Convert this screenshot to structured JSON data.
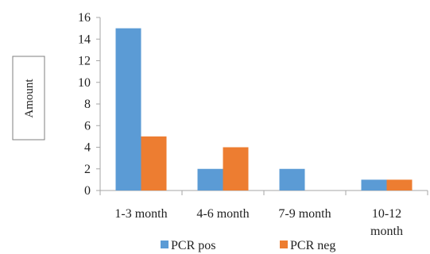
{
  "chart_data": {
    "type": "bar",
    "categories": [
      [
        "1-3 month"
      ],
      [
        "4-6 month"
      ],
      [
        "7-9 month"
      ],
      [
        "10-12",
        "month"
      ]
    ],
    "series": [
      {
        "name": "PCR pos",
        "values": [
          15,
          2,
          2,
          1
        ],
        "color": "#5b9bd5"
      },
      {
        "name": "PCR neg",
        "values": [
          5,
          4,
          0,
          1
        ],
        "color": "#ed7d31"
      }
    ],
    "ylabel": "Amount",
    "xlabel": "",
    "title": "",
    "ylim": [
      0,
      16
    ],
    "yticks": [
      0,
      2,
      4,
      6,
      8,
      10,
      12,
      14,
      16
    ],
    "grid": false,
    "legend_position": "bottom"
  }
}
